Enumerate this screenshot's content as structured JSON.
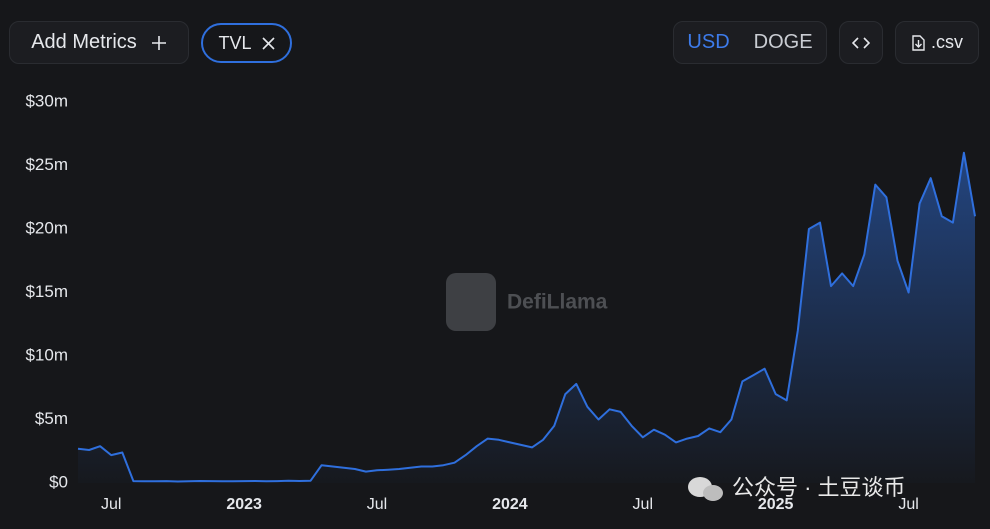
{
  "controls": {
    "add_metrics": "Add Metrics",
    "metric": "TVL",
    "currencies": [
      "USD",
      "DOGE"
    ],
    "download": ".csv"
  },
  "watermarks": {
    "brand": "DefiLlama",
    "wechat": "公众号 · 土豆谈币"
  },
  "chart_data": {
    "type": "line",
    "fill": true,
    "color": "#2f6fdd",
    "grid": false,
    "categories": [
      null,
      null,
      null,
      "Jul",
      null,
      null,
      null,
      null,
      null,
      null,
      null,
      null,
      null,
      null,
      null,
      "2023",
      null,
      null,
      null,
      null,
      null,
      null,
      null,
      null,
      null,
      null,
      null,
      "Jul",
      null,
      null,
      null,
      null,
      null,
      null,
      null,
      null,
      null,
      null,
      null,
      "2024",
      null,
      null,
      null,
      null,
      null,
      null,
      null,
      null,
      null,
      null,
      null,
      "Jul",
      null,
      null,
      null,
      null,
      null,
      null,
      null,
      null,
      null,
      null,
      null,
      "2025",
      null,
      null,
      null,
      null,
      null,
      null,
      null,
      null,
      null,
      null,
      null,
      "Jul",
      null,
      null,
      null,
      null,
      null,
      null
    ],
    "values": [
      2700000,
      2600000,
      2900000,
      2200000,
      2400000,
      150000,
      140000,
      130000,
      150000,
      120000,
      140000,
      160000,
      150000,
      130000,
      140000,
      150000,
      160000,
      140000,
      150000,
      170000,
      160000,
      180000,
      1400000,
      1300000,
      1200000,
      1100000,
      900000,
      1000000,
      1050000,
      1100000,
      1200000,
      1300000,
      1300000,
      1400000,
      1600000,
      2200000,
      2900000,
      3500000,
      3400000,
      3200000,
      3000000,
      2800000,
      3400000,
      4500000,
      7000000,
      7800000,
      6000000,
      5000000,
      5800000,
      5600000,
      4500000,
      3600000,
      4200000,
      3800000,
      3200000,
      3500000,
      3700000,
      4300000,
      4000000,
      5000000,
      8000000,
      8500000,
      9000000,
      7000000,
      6500000,
      12000000,
      20000000,
      20500000,
      15500000,
      16500000,
      15500000,
      18000000,
      23500000,
      22500000,
      17500000,
      15000000,
      22000000,
      24000000,
      21000000,
      20500000,
      26000000,
      21000000
    ],
    "ylim": [
      0,
      30000000
    ],
    "yticks": [
      {
        "value": 0,
        "label": "$0"
      },
      {
        "value": 5000000,
        "label": "$5m"
      },
      {
        "value": 10000000,
        "label": "$10m"
      },
      {
        "value": 15000000,
        "label": "$15m"
      },
      {
        "value": 20000000,
        "label": "$20m"
      },
      {
        "value": 25000000,
        "label": "$25m"
      },
      {
        "value": 30000000,
        "label": "$30m"
      }
    ]
  }
}
